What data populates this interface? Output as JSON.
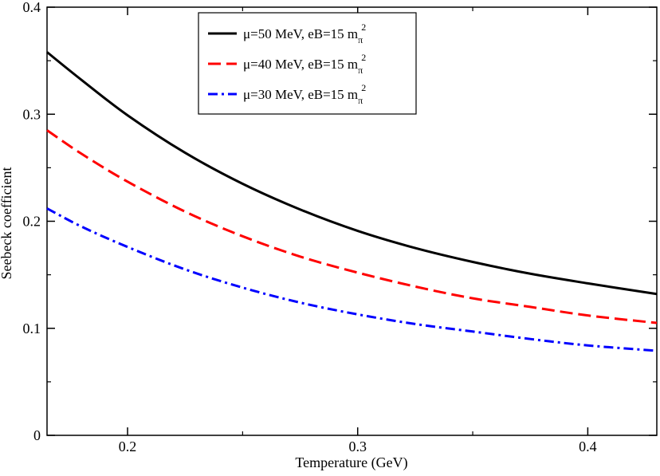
{
  "chart_data": {
    "type": "line",
    "title": "",
    "xlabel": "Temperature (GeV)",
    "ylabel": "Seebeck coefficient",
    "xlim": [
      0.165,
      0.43
    ],
    "ylim": [
      0,
      0.4
    ],
    "xticks": [
      0.2,
      0.3,
      0.4
    ],
    "xtick_labels": [
      "0.2",
      "0.3",
      "0.4"
    ],
    "yticks": [
      0,
      0.1,
      0.2,
      0.3,
      0.4
    ],
    "ytick_labels": [
      "0",
      "0.1",
      "0.2",
      "0.3",
      "0.4"
    ],
    "grid": false,
    "legend_position": "top-center",
    "x": [
      0.165,
      0.18,
      0.2,
      0.225,
      0.25,
      0.275,
      0.3,
      0.325,
      0.35,
      0.375,
      0.4,
      0.43
    ],
    "series": [
      {
        "name": "μ=50 MeV, eB=15 m",
        "sub": "π",
        "sup": "2",
        "style": "solid",
        "color": "#000000",
        "values": [
          0.358,
          0.332,
          0.299,
          0.264,
          0.235,
          0.211,
          0.191,
          0.175,
          0.162,
          0.151,
          0.142,
          0.132
        ]
      },
      {
        "name": "μ=40 MeV, eB=15 m",
        "sub": "π",
        "sup": "2",
        "style": "dashed",
        "color": "#ff0000",
        "values": [
          0.285,
          0.263,
          0.237,
          0.209,
          0.186,
          0.167,
          0.152,
          0.139,
          0.128,
          0.12,
          0.112,
          0.105
        ]
      },
      {
        "name": "μ=30 MeV, eB=15 m",
        "sub": "π",
        "sup": "2",
        "style": "dashdot",
        "color": "#0000ff",
        "values": [
          0.212,
          0.195,
          0.176,
          0.155,
          0.138,
          0.124,
          0.113,
          0.104,
          0.097,
          0.09,
          0.084,
          0.079
        ]
      }
    ]
  }
}
